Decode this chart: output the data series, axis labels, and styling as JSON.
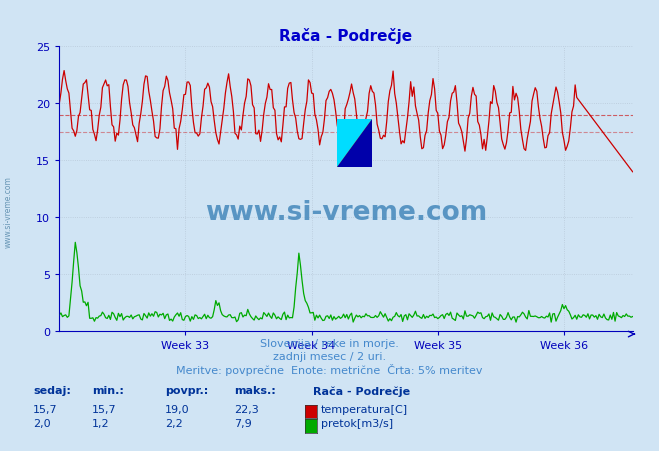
{
  "title": "Rača - Podrečje",
  "title_color": "#0000cc",
  "bg_color": "#d0e4f4",
  "plot_bg_color": "#d0e4f4",
  "x_weeks": [
    "Week 33",
    "Week 34",
    "Week 35",
    "Week 36"
  ],
  "ylim": [
    0,
    25
  ],
  "yticks": [
    0,
    5,
    10,
    15,
    20,
    25
  ],
  "grid_color": "#b8c8d8",
  "temp_color": "#cc0000",
  "flow_color": "#00aa00",
  "avg_line_color": "#cc0000",
  "hline_5pct_color": "#cc0000",
  "subtitle1": "Slovenija / reke in morje.",
  "subtitle2": "zadnji mesec / 2 uri.",
  "subtitle3": "Meritve: povprečne  Enote: metrične  Črta: 5% meritev",
  "subtitle_color": "#4488cc",
  "label_sedaj": "sedaj:",
  "label_min": "min.:",
  "label_povpr": "povpr.:",
  "label_maks": "maks.:",
  "label_station": "Rača - Podrečje",
  "label_color": "#003399",
  "temp_sedaj": "15,7",
  "temp_min": "15,7",
  "temp_povpr": "19,0",
  "temp_maks": "22,3",
  "temp_label": "temperatura[C]",
  "flow_sedaj": "2,0",
  "flow_min": "1,2",
  "flow_povpr": "2,2",
  "flow_maks": "7,9",
  "flow_label": "pretok[m3/s]",
  "watermark": "www.si-vreme.com",
  "watermark_color": "#4488bb",
  "axis_color": "#0000bb",
  "n_points": 360
}
